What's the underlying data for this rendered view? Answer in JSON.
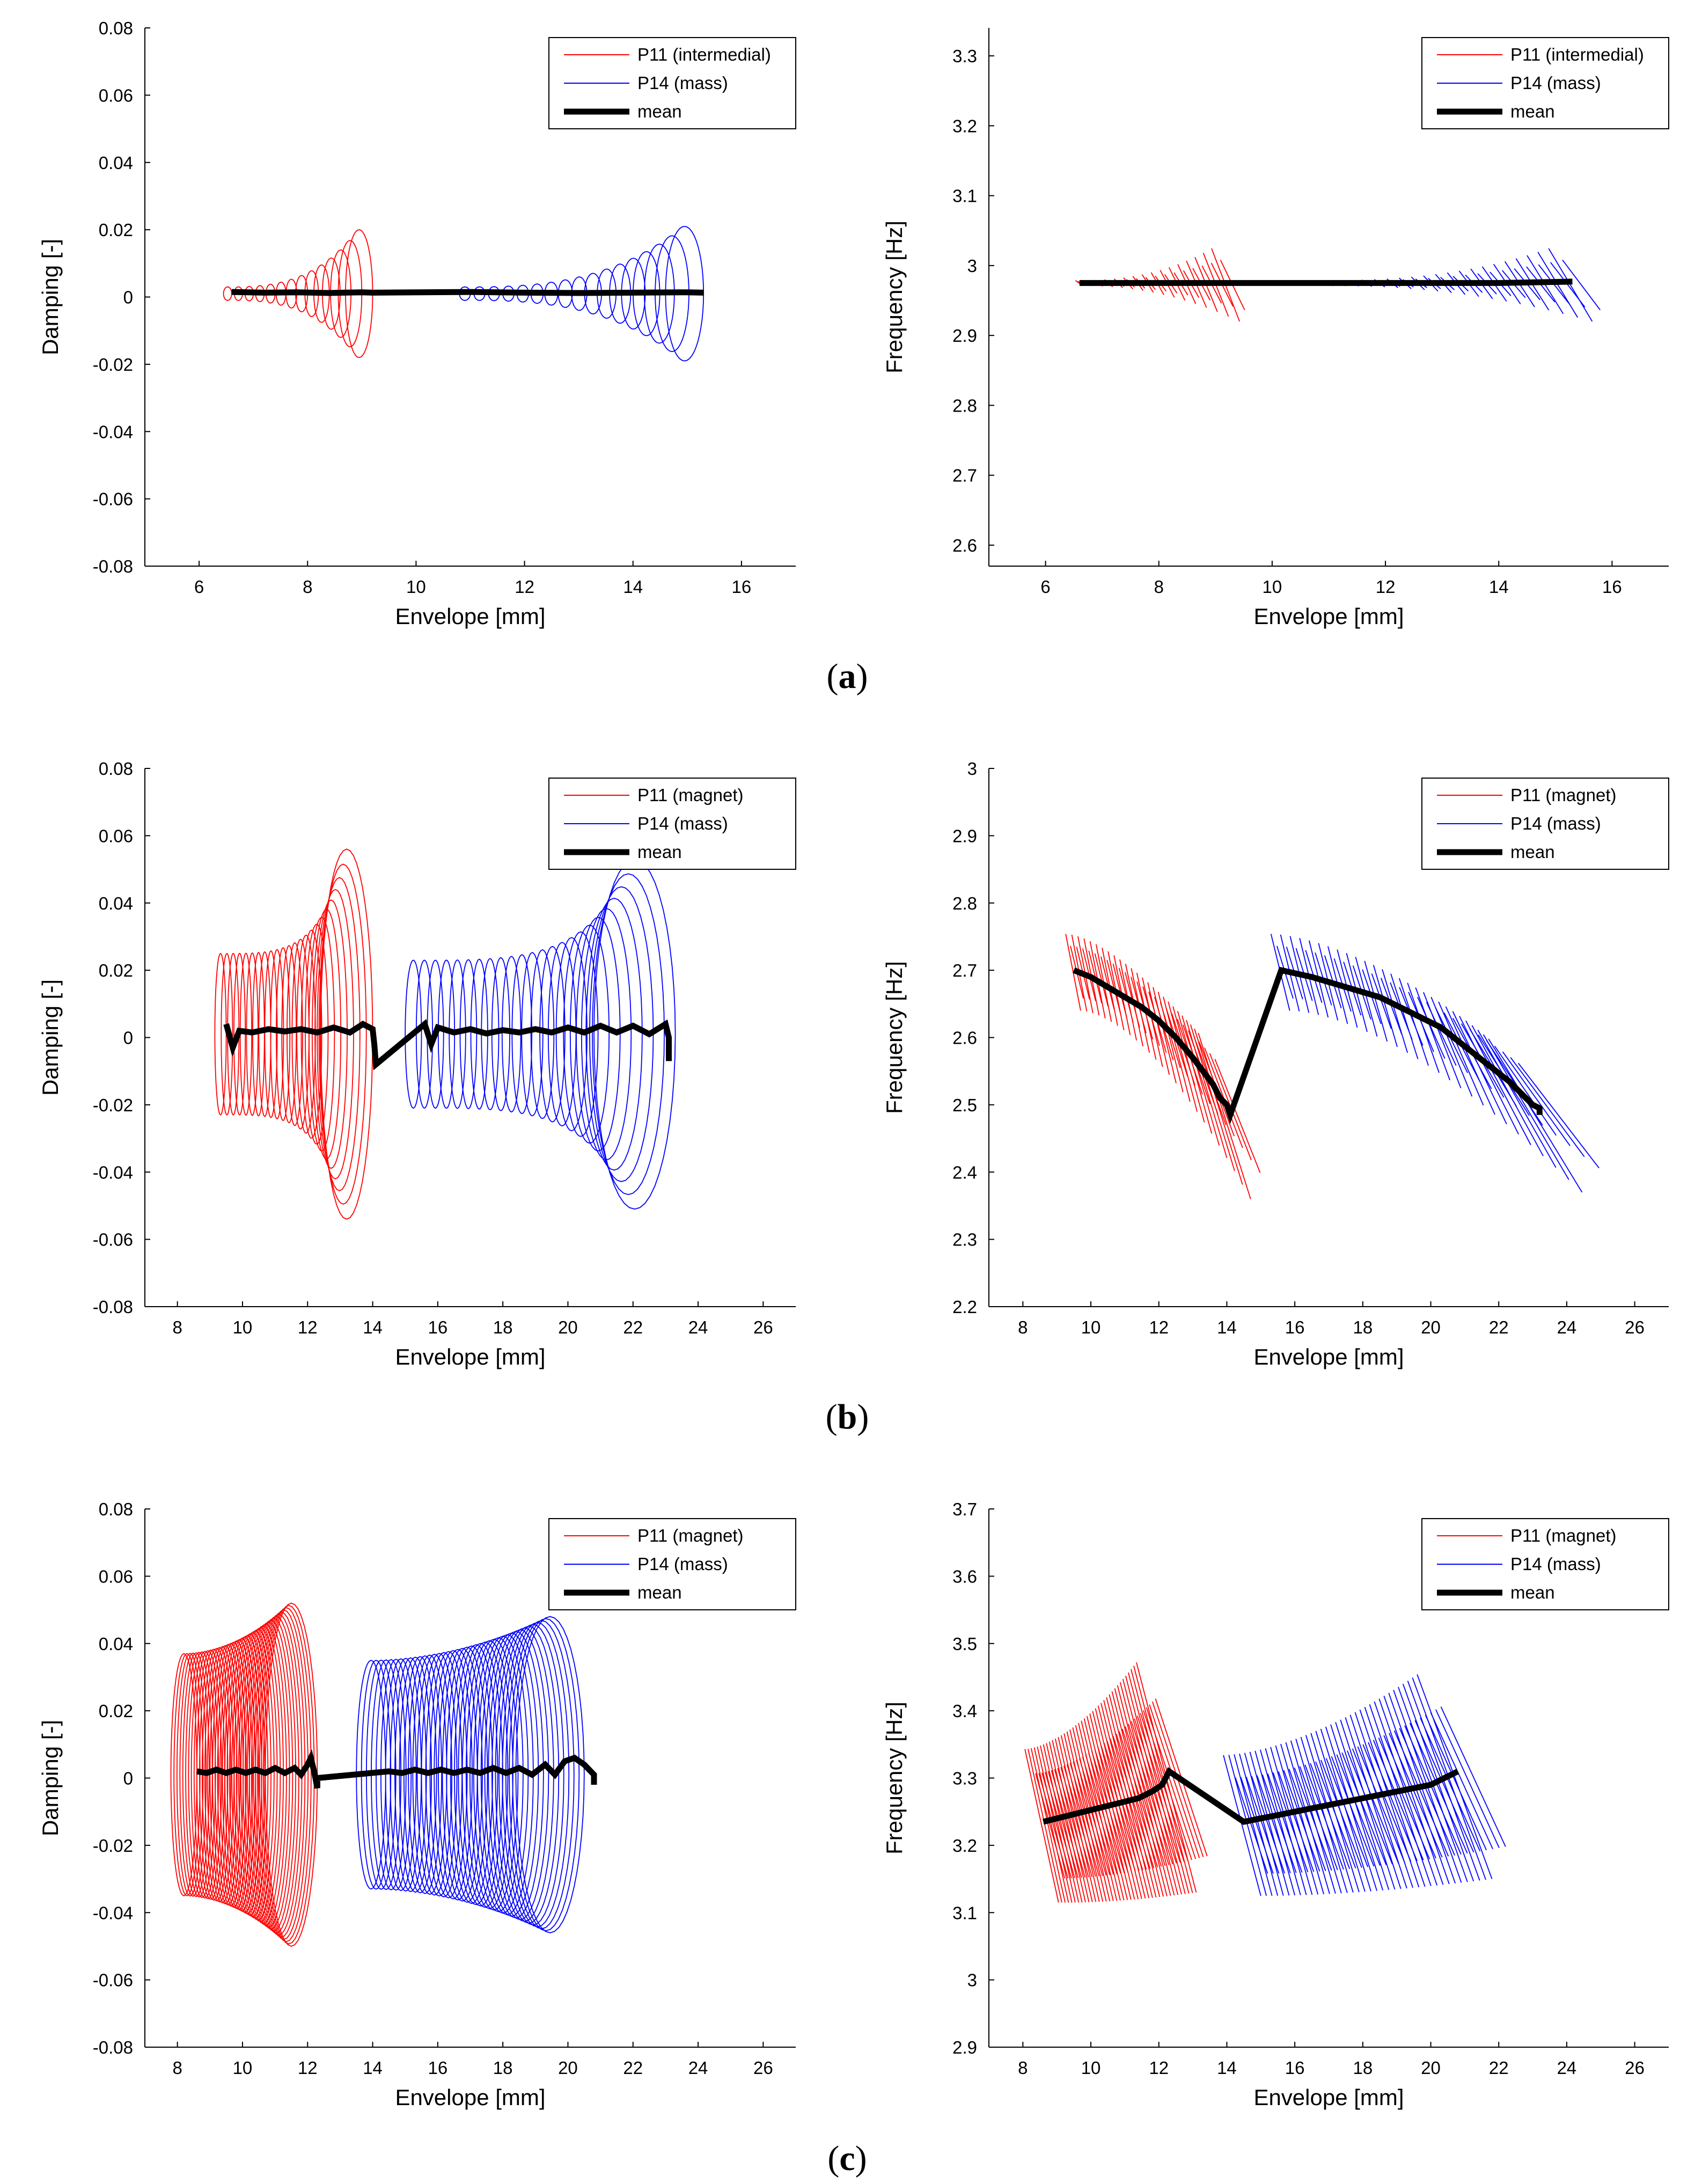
{
  "figure": {
    "panels": [
      {
        "id": "a",
        "label_open": "(",
        "label_letter": "a",
        "label_close": ")"
      },
      {
        "id": "b",
        "label_open": "(",
        "label_letter": "b",
        "label_close": ")"
      },
      {
        "id": "c",
        "label_open": "(",
        "label_letter": "c",
        "label_close": ")"
      }
    ]
  },
  "colors": {
    "p11": "#ff0000",
    "p14": "#0000ff",
    "mean": "#000000"
  },
  "chart_data": [
    {
      "id": "a-damping",
      "type": "line",
      "xlabel": "Envelope [mm]",
      "ylabel": "Damping [-]",
      "xlim": [
        5,
        17
      ],
      "ylim": [
        -0.08,
        0.08
      ],
      "xticks": [
        6,
        8,
        10,
        12,
        14,
        16
      ],
      "yticks": [
        -0.08,
        -0.06,
        -0.04,
        -0.02,
        0,
        0.02,
        0.04,
        0.06,
        0.08
      ],
      "tick_decimals": 2,
      "legend_position": "top-right",
      "legend": [
        "P11 (intermedial)",
        "P14 (mass)",
        "mean"
      ],
      "series": [
        {
          "name": "P11 (intermedial)",
          "color": "#ff0000",
          "shape": "loops",
          "x_range": [
            6.6,
            9.2
          ],
          "center": 0.001,
          "amp_start": 0.002,
          "amp_end": 0.019,
          "growth": 2.6,
          "count": 14,
          "width_start": 0.15,
          "width_end": 0.5
        },
        {
          "name": "P14 (mass)",
          "color": "#0000ff",
          "shape": "loops",
          "x_range": [
            11.0,
            15.3
          ],
          "center": 0.001,
          "amp_start": 0.002,
          "amp_end": 0.02,
          "growth": 2.6,
          "count": 17,
          "width_start": 0.2,
          "width_end": 0.7
        },
        {
          "name": "mean",
          "color": "#000000",
          "shape": "line",
          "x": [
            6.6,
            7.2,
            7.8,
            8.4,
            9.0,
            9.2,
            11.0,
            12.0,
            13.0,
            14.0,
            15.0,
            15.3
          ],
          "y": [
            0.0015,
            0.0013,
            0.0014,
            0.0012,
            0.0014,
            0.0013,
            0.0015,
            0.0013,
            0.0012,
            0.0013,
            0.0014,
            0.0013
          ]
        }
      ]
    },
    {
      "id": "a-frequency",
      "type": "line",
      "xlabel": "Envelope [mm]",
      "ylabel": "Frequency [Hz]",
      "xlim": [
        5,
        17
      ],
      "ylim": [
        2.57,
        3.34
      ],
      "xticks": [
        6,
        8,
        10,
        12,
        14,
        16
      ],
      "yticks": [
        2.6,
        2.7,
        2.8,
        2.9,
        3,
        3.1,
        3.2,
        3.3
      ],
      "tick_decimals": 1,
      "legend_position": "top-right",
      "legend": [
        "P11 (intermedial)",
        "P14 (mass)",
        "mean"
      ],
      "series": [
        {
          "name": "P11 (intermedial)",
          "color": "#ff0000",
          "shape": "slants",
          "x_range": [
            6.6,
            9.2
          ],
          "count": 16,
          "amp_start": 0.004,
          "amp_end": 0.055,
          "growth": 2.2,
          "width_start": 0.12,
          "width_end": 0.45,
          "mean_start": 2.975,
          "mean_end": 2.975
        },
        {
          "name": "P14 (mass)",
          "color": "#0000ff",
          "shape": "slants",
          "x_range": [
            11.0,
            15.3
          ],
          "count": 20,
          "amp_start": 0.004,
          "amp_end": 0.055,
          "growth": 2.2,
          "width_start": 0.15,
          "width_end": 0.7,
          "mean_start": 2.975,
          "mean_end": 2.975
        },
        {
          "name": "mean",
          "color": "#000000",
          "shape": "line",
          "x": [
            6.6,
            7.5,
            8.5,
            9.2,
            11.0,
            12.5,
            14.0,
            15.3
          ],
          "y": [
            2.975,
            2.975,
            2.975,
            2.975,
            2.975,
            2.975,
            2.975,
            2.977
          ]
        }
      ]
    },
    {
      "id": "b-damping",
      "type": "line",
      "xlabel": "Envelope [mm]",
      "ylabel": "Damping [-]",
      "xlim": [
        7,
        27
      ],
      "ylim": [
        -0.08,
        0.08
      ],
      "xticks": [
        8,
        10,
        12,
        14,
        16,
        18,
        20,
        22,
        24,
        26
      ],
      "yticks": [
        -0.08,
        -0.06,
        -0.04,
        -0.02,
        0,
        0.02,
        0.04,
        0.06,
        0.08
      ],
      "tick_decimals": 2,
      "legend_position": "top-right",
      "legend": [
        "P11 (magnet)",
        "P14 (mass)",
        "mean"
      ],
      "series": [
        {
          "name": "P11 (magnet)",
          "color": "#ff0000",
          "shape": "loops",
          "x_range": [
            9.5,
            14.0
          ],
          "center": 0.001,
          "amp_start": 0.024,
          "amp_end": 0.055,
          "growth": 3.5,
          "count": 24,
          "width_start": 0.35,
          "width_end": 1.6
        },
        {
          "name": "P14 (mass)",
          "color": "#0000ff",
          "shape": "loops",
          "x_range": [
            15.5,
            23.3
          ],
          "center": 0.001,
          "amp_start": 0.022,
          "amp_end": 0.052,
          "growth": 3.5,
          "count": 24,
          "width_start": 0.5,
          "width_end": 2.5
        },
        {
          "name": "mean",
          "color": "#000000",
          "shape": "line",
          "x": [
            9.5,
            9.7,
            9.9,
            10.3,
            10.8,
            11.3,
            11.8,
            12.3,
            12.8,
            13.3,
            13.7,
            14.0,
            14.05,
            14.1,
            15.6,
            15.8,
            16.0,
            16.5,
            17.0,
            17.5,
            18.0,
            18.5,
            19.0,
            19.5,
            20.0,
            20.5,
            21.0,
            21.5,
            22.0,
            22.5,
            23.0,
            23.1,
            23.1
          ],
          "y": [
            0.004,
            -0.003,
            0.002,
            0.0015,
            0.0025,
            0.0018,
            0.0025,
            0.0015,
            0.003,
            0.0015,
            0.004,
            0.0025,
            -0.002,
            -0.008,
            0.004,
            -0.002,
            0.003,
            0.0015,
            0.0025,
            0.0012,
            0.0022,
            0.0015,
            0.0025,
            0.0015,
            0.003,
            0.0015,
            0.0035,
            0.0015,
            0.0035,
            0.001,
            0.004,
            0.0,
            -0.007
          ]
        }
      ]
    },
    {
      "id": "b-frequency",
      "type": "line",
      "xlabel": "Envelope [mm]",
      "ylabel": "Frequency [Hz]",
      "xlim": [
        7,
        27
      ],
      "ylim": [
        2.2,
        3.0
      ],
      "xticks": [
        8,
        10,
        12,
        14,
        16,
        18,
        20,
        22,
        24,
        26
      ],
      "yticks": [
        2.2,
        2.3,
        2.4,
        2.5,
        2.6,
        2.7,
        2.8,
        2.9,
        3
      ],
      "tick_decimals": 1,
      "legend_position": "top-right",
      "legend": [
        "P11 (magnet)",
        "P14 (mass)",
        "mean"
      ],
      "series": [
        {
          "name": "P11 (magnet)",
          "color": "#ff0000",
          "shape": "slants",
          "x_range": [
            9.5,
            14.0
          ],
          "count": 26,
          "amp_start": 0.06,
          "amp_end": 0.13,
          "growth": 3.0,
          "width_start": 0.4,
          "width_end": 1.4,
          "mean_start": 2.7,
          "mean_end": 2.49
        },
        {
          "name": "P14 (mass)",
          "color": "#0000ff",
          "shape": "slants",
          "x_range": [
            15.6,
            23.2
          ],
          "count": 28,
          "amp_start": 0.06,
          "amp_end": 0.12,
          "growth": 3.0,
          "width_start": 0.5,
          "width_end": 2.5,
          "mean_start": 2.7,
          "mean_end": 2.49
        },
        {
          "name": "mean",
          "color": "#000000",
          "shape": "line",
          "x": [
            9.5,
            10.0,
            10.5,
            11.0,
            11.5,
            12.0,
            12.5,
            13.0,
            13.3,
            13.6,
            13.8,
            14.0,
            14.1,
            15.6,
            16.5,
            17.5,
            18.5,
            19.5,
            20.3,
            20.8,
            21.3,
            21.8,
            22.3,
            22.7,
            23.0,
            23.2,
            23.2
          ],
          "y": [
            2.7,
            2.69,
            2.675,
            2.66,
            2.645,
            2.625,
            2.6,
            2.57,
            2.55,
            2.53,
            2.51,
            2.5,
            2.485,
            2.7,
            2.69,
            2.675,
            2.66,
            2.635,
            2.615,
            2.595,
            2.575,
            2.555,
            2.535,
            2.515,
            2.5,
            2.495,
            2.485
          ]
        }
      ]
    },
    {
      "id": "c-damping",
      "type": "line",
      "xlabel": "Envelope [mm]",
      "ylabel": "Damping [-]",
      "xlim": [
        7,
        27
      ],
      "ylim": [
        -0.08,
        0.08
      ],
      "xticks": [
        8,
        10,
        12,
        14,
        16,
        18,
        20,
        22,
        24,
        26
      ],
      "yticks": [
        -0.08,
        -0.06,
        -0.04,
        -0.02,
        0,
        0.02,
        0.04,
        0.06,
        0.08
      ],
      "tick_decimals": 2,
      "legend_position": "top-right",
      "legend": [
        "P11 (magnet)",
        "P14 (mass)",
        "mean"
      ],
      "series": [
        {
          "name": "P11 (magnet)",
          "color": "#ff0000",
          "shape": "loops",
          "x_range": [
            8.6,
            12.3
          ],
          "center": 0.001,
          "amp_start": 0.036,
          "amp_end": 0.051,
          "growth": 1.8,
          "count": 40,
          "width_start": 0.8,
          "width_end": 1.6
        },
        {
          "name": "P14 (mass)",
          "color": "#0000ff",
          "shape": "loops",
          "x_range": [
            14.4,
            20.5
          ],
          "center": 0.001,
          "amp_start": 0.034,
          "amp_end": 0.047,
          "growth": 1.8,
          "count": 40,
          "width_start": 0.9,
          "width_end": 2.1
        },
        {
          "name": "mean",
          "color": "#000000",
          "shape": "line",
          "x": [
            8.6,
            8.9,
            9.2,
            9.5,
            9.8,
            10.1,
            10.4,
            10.7,
            11.0,
            11.3,
            11.6,
            11.8,
            12.0,
            12.1,
            12.2,
            12.3,
            12.3,
            14.5,
            14.9,
            15.3,
            15.7,
            16.1,
            16.5,
            16.9,
            17.3,
            17.7,
            18.1,
            18.5,
            18.9,
            19.3,
            19.6,
            19.9,
            20.2,
            20.5,
            20.8,
            20.8
          ],
          "y": [
            0.002,
            0.0015,
            0.0025,
            0.0015,
            0.0025,
            0.0015,
            0.0025,
            0.0015,
            0.003,
            0.0015,
            0.003,
            0.001,
            0.004,
            0.006,
            0.002,
            -0.003,
            0.0,
            0.002,
            0.0015,
            0.0025,
            0.0015,
            0.0025,
            0.0015,
            0.0025,
            0.0015,
            0.003,
            0.0015,
            0.003,
            0.001,
            0.004,
            0.001,
            0.005,
            0.006,
            0.004,
            0.001,
            -0.002
          ]
        }
      ]
    },
    {
      "id": "c-frequency",
      "type": "line",
      "xlabel": "Envelope [mm]",
      "ylabel": "Frequency [Hz]",
      "xlim": [
        7,
        27
      ],
      "ylim": [
        2.9,
        3.7
      ],
      "xticks": [
        8,
        10,
        12,
        14,
        16,
        18,
        20,
        22,
        24,
        26
      ],
      "yticks": [
        2.9,
        3,
        3.1,
        3.2,
        3.3,
        3.4,
        3.5,
        3.6,
        3.7
      ],
      "tick_decimals": 1,
      "legend_position": "top-right",
      "legend": [
        "P11 (magnet)",
        "P14 (mass)",
        "mean"
      ],
      "series": [
        {
          "name": "P11 (magnet)",
          "color": "#ff0000",
          "shape": "slants",
          "x_range": [
            8.6,
            12.3
          ],
          "count": 40,
          "amp_start": 0.12,
          "amp_end": 0.18,
          "growth": 1.5,
          "width_start": 0.9,
          "width_end": 1.6,
          "mean_start": 3.235,
          "mean_end": 3.31
        },
        {
          "name": "P14 (mass)",
          "color": "#0000ff",
          "shape": "slants",
          "x_range": [
            14.5,
            20.8
          ],
          "count": 40,
          "amp_start": 0.11,
          "amp_end": 0.16,
          "growth": 1.5,
          "width_start": 1.0,
          "width_end": 2.0,
          "mean_start": 3.235,
          "mean_end": 3.31
        },
        {
          "name": "mean",
          "color": "#000000",
          "shape": "line",
          "x": [
            8.6,
            9.0,
            9.4,
            9.8,
            10.2,
            10.6,
            11.0,
            11.4,
            11.8,
            12.1,
            12.3,
            14.5,
            15.0,
            15.5,
            16.0,
            16.5,
            17.0,
            17.5,
            18.0,
            18.5,
            19.0,
            19.5,
            20.0,
            20.4,
            20.8
          ],
          "y": [
            3.235,
            3.24,
            3.245,
            3.25,
            3.255,
            3.26,
            3.265,
            3.27,
            3.28,
            3.29,
            3.31,
            3.235,
            3.24,
            3.245,
            3.25,
            3.255,
            3.26,
            3.265,
            3.27,
            3.275,
            3.28,
            3.285,
            3.29,
            3.3,
            3.31
          ]
        }
      ]
    }
  ]
}
